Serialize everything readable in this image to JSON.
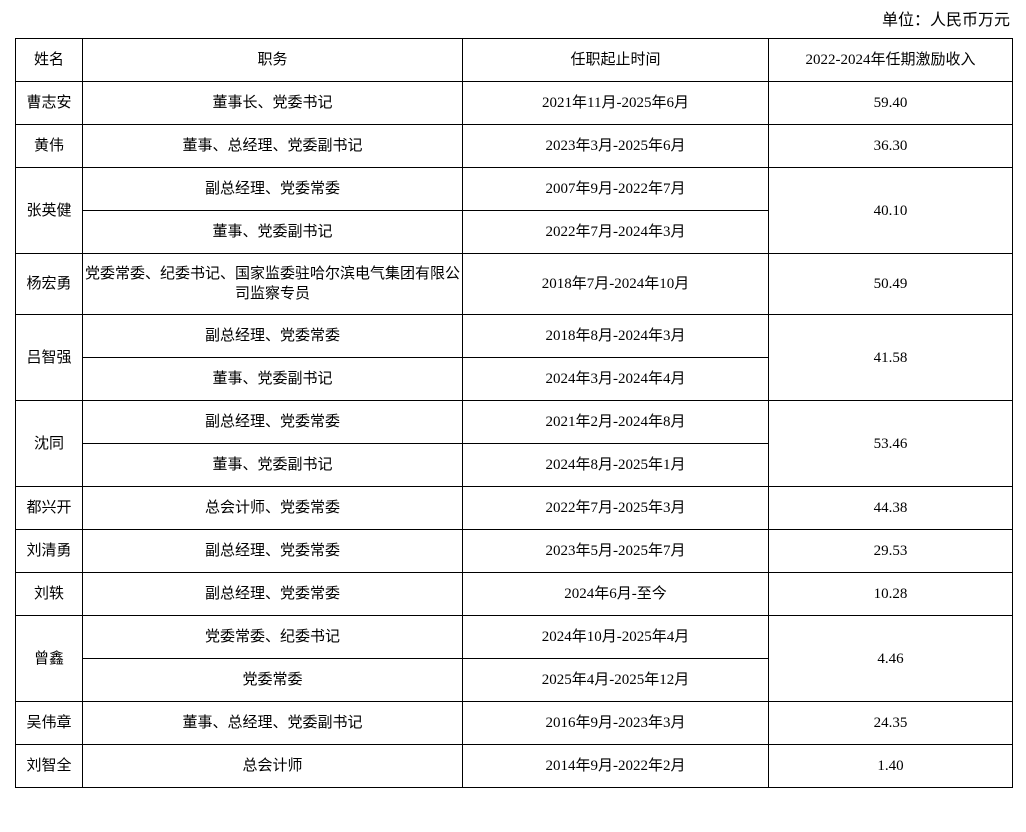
{
  "unit_label": "单位：人民币万元",
  "headers": [
    "姓名",
    "职务",
    "任职起止时间",
    "2022-2024年任期激励收入"
  ],
  "people": [
    {
      "name": "曹志安",
      "income": "59.40",
      "roles": [
        {
          "title": "董事长、党委书记",
          "period": "2021年11月-2025年6月"
        }
      ]
    },
    {
      "name": "黄伟",
      "income": "36.30",
      "roles": [
        {
          "title": "董事、总经理、党委副书记",
          "period": "2023年3月-2025年6月"
        }
      ]
    },
    {
      "name": "张英健",
      "income": "40.10",
      "roles": [
        {
          "title": "副总经理、党委常委",
          "period": "2007年9月-2022年7月"
        },
        {
          "title": "董事、党委副书记",
          "period": "2022年7月-2024年3月"
        }
      ]
    },
    {
      "name": "杨宏勇",
      "income": "50.49",
      "roles": [
        {
          "title": "党委常委、纪委书记、国家监委驻哈尔滨电气集团有限公司监察专员",
          "period": "2018年7月-2024年10月"
        }
      ]
    },
    {
      "name": "吕智强",
      "income": "41.58",
      "roles": [
        {
          "title": "副总经理、党委常委",
          "period": "2018年8月-2024年3月"
        },
        {
          "title": "董事、党委副书记",
          "period": "2024年3月-2024年4月"
        }
      ]
    },
    {
      "name": "沈同",
      "income": "53.46",
      "roles": [
        {
          "title": "副总经理、党委常委",
          "period": "2021年2月-2024年8月"
        },
        {
          "title": "董事、党委副书记",
          "period": "2024年8月-2025年1月"
        }
      ]
    },
    {
      "name": "都兴开",
      "income": "44.38",
      "roles": [
        {
          "title": "总会计师、党委常委",
          "period": "2022年7月-2025年3月"
        }
      ]
    },
    {
      "name": "刘清勇",
      "income": "29.53",
      "roles": [
        {
          "title": "副总经理、党委常委",
          "period": "2023年5月-2025年7月"
        }
      ]
    },
    {
      "name": "刘轶",
      "income": "10.28",
      "roles": [
        {
          "title": "副总经理、党委常委",
          "period": "2024年6月-至今"
        }
      ]
    },
    {
      "name": "曾鑫",
      "income": "4.46",
      "roles": [
        {
          "title": "党委常委、纪委书记",
          "period": "2024年10月-2025年4月"
        },
        {
          "title": "党委常委",
          "period": "2025年4月-2025年12月"
        }
      ]
    },
    {
      "name": "吴伟章",
      "income": "24.35",
      "roles": [
        {
          "title": "董事、总经理、党委副书记",
          "period": "2016年9月-2023年3月"
        }
      ]
    },
    {
      "name": "刘智全",
      "income": "1.40",
      "roles": [
        {
          "title": "总会计师",
          "period": "2014年9月-2022年2月"
        }
      ]
    }
  ]
}
